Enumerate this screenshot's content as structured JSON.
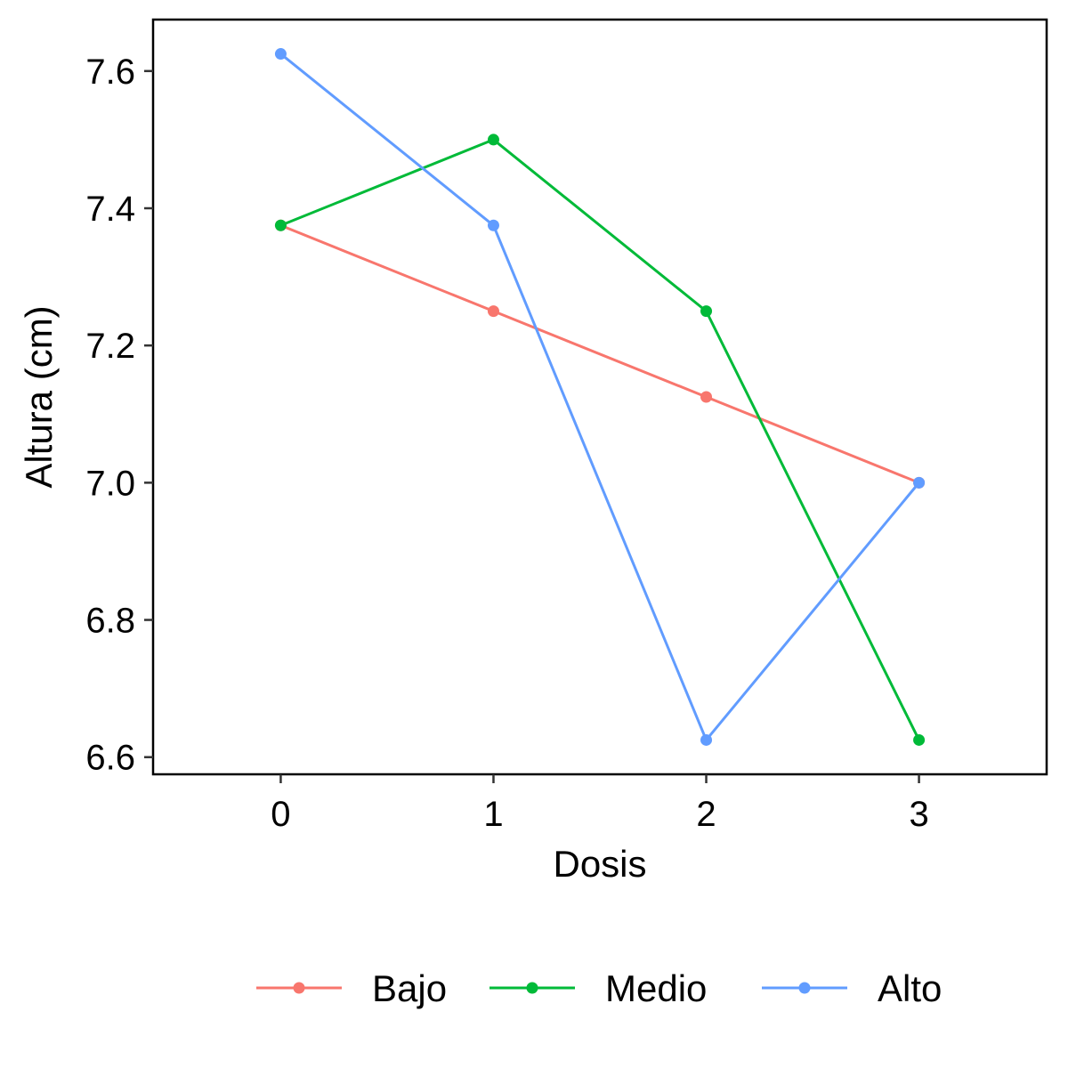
{
  "chart_data": {
    "type": "line",
    "xlabel": "Dosis",
    "ylabel": "Altura (cm)",
    "x": [
      0,
      1,
      2,
      3
    ],
    "x_ticks": [
      "0",
      "1",
      "2",
      "3"
    ],
    "y_ticks": [
      "6.6",
      "6.8",
      "7.0",
      "7.2",
      "7.4",
      "7.6"
    ],
    "xlim": [
      -0.6,
      3.6
    ],
    "ylim": [
      6.575,
      7.675
    ],
    "grid": false,
    "legend_position": "bottom",
    "series": [
      {
        "name": "Bajo",
        "color": "#F8766D",
        "values": [
          7.375,
          7.25,
          7.125,
          7.0
        ]
      },
      {
        "name": "Medio",
        "color": "#00BA38",
        "values": [
          7.375,
          7.5,
          7.25,
          6.625
        ]
      },
      {
        "name": "Alto",
        "color": "#619CFF",
        "values": [
          7.625,
          7.375,
          6.625,
          7.0
        ]
      }
    ]
  }
}
